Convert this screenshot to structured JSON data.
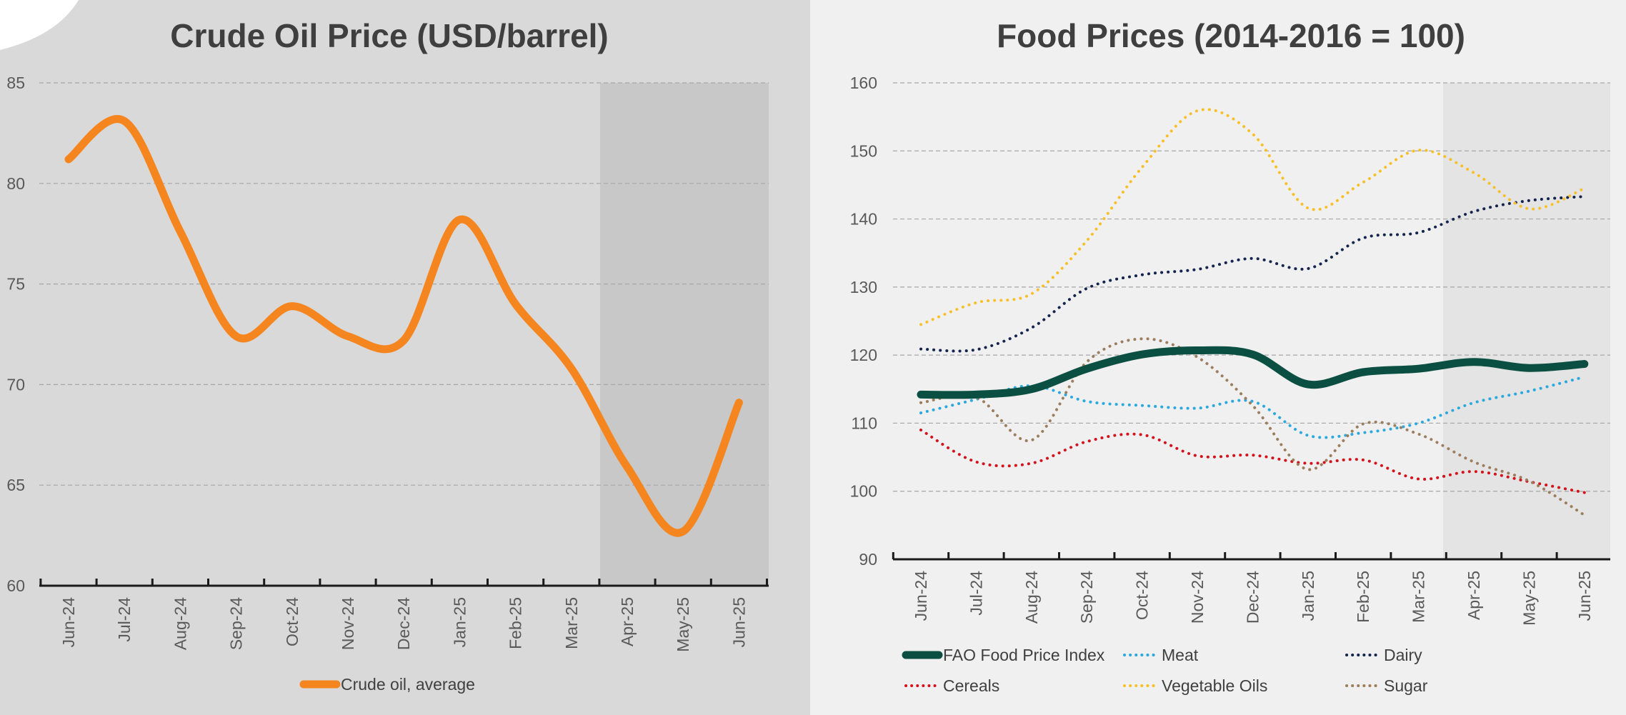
{
  "chart_data": [
    {
      "type": "line",
      "title": "Crude Oil Price (USD/barrel)",
      "categories": [
        "Jun-24",
        "Jul-24",
        "Aug-24",
        "Sep-24",
        "Oct-24",
        "Nov-24",
        "Dec-24",
        "Jan-25",
        "Feb-25",
        "Mar-25",
        "Apr-25",
        "May-25",
        "Jun-25"
      ],
      "ylim": [
        60,
        85
      ],
      "yticks": [
        60,
        65,
        70,
        75,
        80,
        85
      ],
      "shaded_from": "Apr-25",
      "series": [
        {
          "name": "Crude oil, average",
          "color": "#f5861f",
          "style": "solid",
          "values": [
            81.2,
            83.1,
            77.6,
            72.4,
            73.9,
            72.4,
            72.2,
            78.2,
            74.0,
            70.8,
            65.9,
            62.7,
            69.1
          ]
        }
      ],
      "xlabel": "",
      "ylabel": "",
      "grid": true,
      "legend": "bottom"
    },
    {
      "type": "line",
      "title": "Food Prices (2014-2016 = 100)",
      "categories": [
        "Jun-24",
        "Jul-24",
        "Aug-24",
        "Sep-24",
        "Oct-24",
        "Nov-24",
        "Dec-24",
        "Jan-25",
        "Feb-25",
        "Mar-25",
        "Apr-25",
        "May-25",
        "Jun-25"
      ],
      "ylim": [
        90,
        160
      ],
      "yticks": [
        90,
        100,
        110,
        120,
        130,
        140,
        150,
        160
      ],
      "shaded_from": "Apr-25",
      "series": [
        {
          "name": "FAO Food Price Index",
          "color": "#0b4f42",
          "style": "solid",
          "values": [
            114.2,
            114.2,
            115.0,
            118.0,
            120.1,
            120.7,
            120.1,
            115.7,
            117.5,
            118.0,
            119.0,
            118.1,
            118.7
          ]
        },
        {
          "name": "Meat",
          "color": "#2ba9de",
          "style": "dotted",
          "values": [
            111.5,
            113.5,
            115.5,
            113.2,
            112.6,
            112.2,
            113.2,
            108.2,
            108.6,
            110.0,
            113.0,
            114.7,
            116.8
          ]
        },
        {
          "name": "Dairy",
          "color": "#14244d",
          "style": "dotted",
          "values": [
            120.9,
            120.8,
            124.0,
            129.8,
            131.8,
            132.6,
            134.2,
            132.7,
            137.2,
            138.0,
            141.1,
            142.7,
            143.3
          ]
        },
        {
          "name": "Cereals",
          "color": "#d3121c",
          "style": "dotted",
          "values": [
            109.0,
            104.3,
            104.1,
            107.3,
            108.3,
            105.2,
            105.3,
            104.1,
            104.6,
            101.8,
            102.9,
            101.4,
            99.8
          ]
        },
        {
          "name": "Vegetable Oils",
          "color": "#f7c02b",
          "style": "dotted",
          "values": [
            124.5,
            127.7,
            129.0,
            136.8,
            147.6,
            155.9,
            152.5,
            141.6,
            145.4,
            150.1,
            146.8,
            141.5,
            144.5
          ]
        },
        {
          "name": "Sugar",
          "color": "#9c7d5d",
          "style": "dotted",
          "values": [
            113.0,
            113.8,
            107.5,
            119.0,
            122.4,
            119.7,
            112.6,
            103.2,
            109.9,
            108.4,
            104.3,
            101.5,
            96.5
          ]
        }
      ],
      "xlabel": "",
      "ylabel": "",
      "grid": true,
      "legend": "bottom"
    }
  ]
}
